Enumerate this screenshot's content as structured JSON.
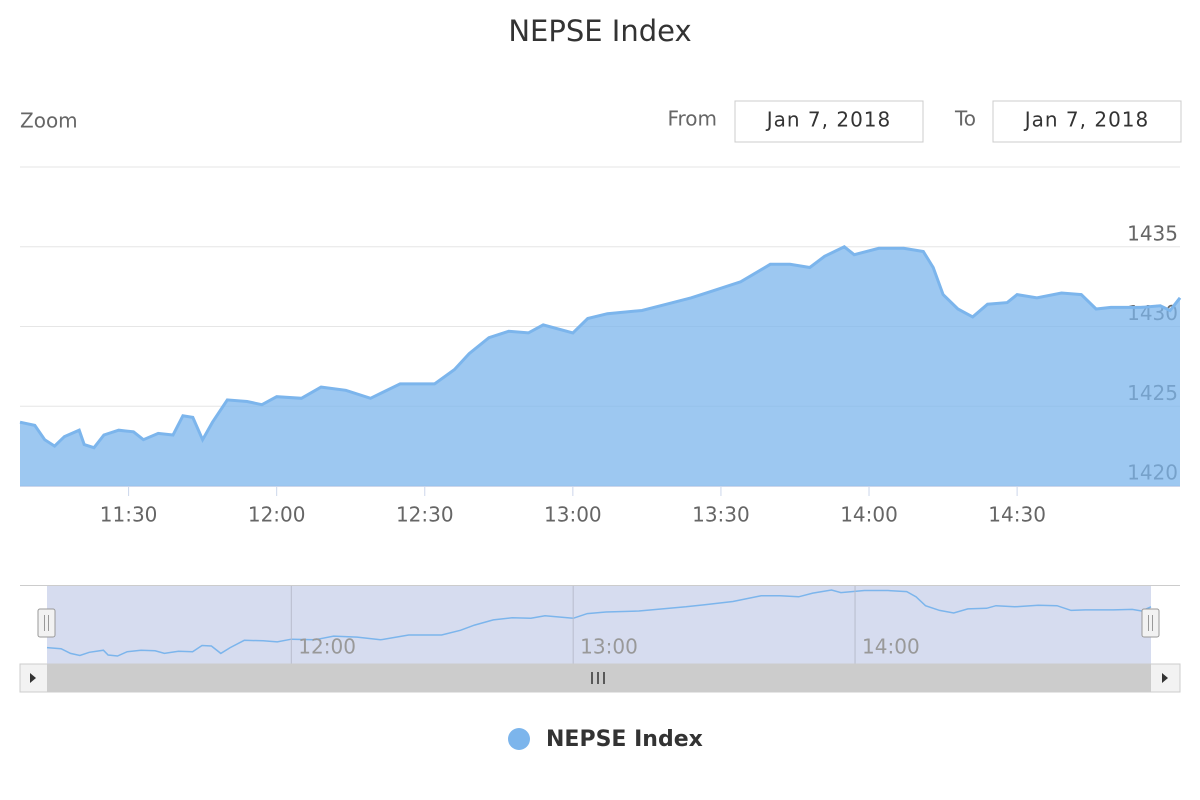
{
  "chart_data": {
    "type": "area",
    "title": "NEPSE Index",
    "x": [
      668,
      671,
      673,
      675,
      677,
      680,
      681,
      683,
      685,
      688,
      691,
      693,
      696,
      699,
      701,
      703,
      705,
      707,
      710,
      714,
      717,
      720,
      725,
      729,
      734,
      739,
      745,
      752,
      756,
      759,
      763,
      767,
      771,
      774,
      780,
      783,
      787,
      794,
      799,
      804,
      808,
      814,
      820,
      824,
      828,
      831,
      835,
      837,
      842,
      847,
      851,
      853,
      855,
      858,
      861,
      864,
      868,
      870,
      874,
      879,
      883,
      886,
      889,
      895,
      899,
      901,
      903
    ],
    "series": [
      {
        "name": "NEPSE Index",
        "color": "#7cb5ec",
        "values": [
          1424.0,
          1423.8,
          1422.9,
          1422.5,
          1423.1,
          1423.5,
          1422.6,
          1422.4,
          1423.2,
          1423.5,
          1423.4,
          1422.9,
          1423.3,
          1423.2,
          1424.4,
          1424.3,
          1422.9,
          1424.0,
          1425.4,
          1425.3,
          1425.1,
          1425.6,
          1425.5,
          1426.2,
          1426.0,
          1425.5,
          1426.4,
          1426.4,
          1427.3,
          1428.3,
          1429.3,
          1429.7,
          1429.6,
          1430.1,
          1429.6,
          1430.5,
          1430.8,
          1431.0,
          1431.4,
          1431.8,
          1432.2,
          1432.8,
          1433.9,
          1433.9,
          1433.7,
          1434.4,
          1435.0,
          1434.5,
          1434.9,
          1434.9,
          1434.7,
          1433.7,
          1432.0,
          1431.1,
          1430.6,
          1431.4,
          1431.5,
          1432.0,
          1431.8,
          1432.1,
          1432.0,
          1431.1,
          1431.2,
          1431.2,
          1431.3,
          1431.0,
          1431.8
        ]
      }
    ],
    "xlim": [
      668,
      903
    ],
    "xticks": [
      {
        "value": 690,
        "label": "11:30"
      },
      {
        "value": 720,
        "label": "12:00"
      },
      {
        "value": 750,
        "label": "12:30"
      },
      {
        "value": 780,
        "label": "13:00"
      },
      {
        "value": 810,
        "label": "13:30"
      },
      {
        "value": 840,
        "label": "14:00"
      },
      {
        "value": 870,
        "label": "14:30"
      }
    ],
    "ylim": [
      1420,
      1440
    ],
    "yticks": [
      1420,
      1425,
      1430,
      1435
    ],
    "grid": true,
    "navigator": {
      "xticks": [
        {
          "value": 720,
          "label": "12:00"
        },
        {
          "value": 780,
          "label": "13:00"
        },
        {
          "value": 840,
          "label": "14:00"
        }
      ]
    }
  },
  "range_selector": {
    "zoom_label": "Zoom",
    "from_label": "From",
    "from_value": "Jan 7, 2018",
    "to_label": "To",
    "to_value": "Jan 7, 2018"
  }
}
